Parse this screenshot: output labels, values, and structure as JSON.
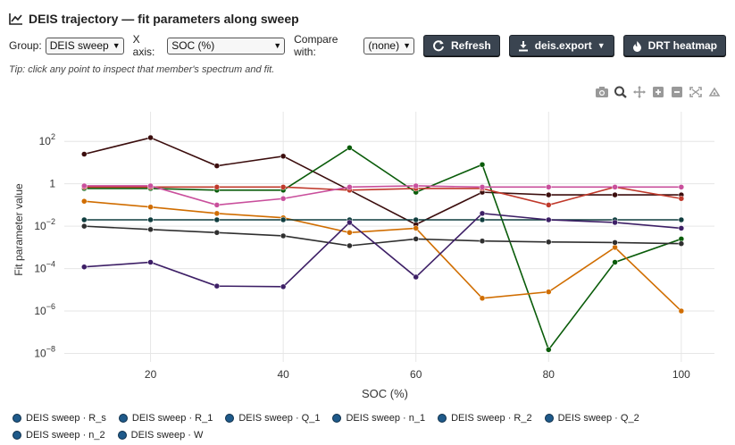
{
  "header": {
    "title": "DEIS trajectory — fit parameters along sweep",
    "icon": "line-chart-icon"
  },
  "controls": {
    "group_label": "Group:",
    "group_value": "DEIS sweep",
    "xaxis_label": "X axis:",
    "xaxis_value": "SOC (%)",
    "compare_label": "Compare with:",
    "compare_value": "(none)",
    "refresh_label": "Refresh",
    "export_label": "deis.export",
    "drt_label": "DRT heatmap"
  },
  "tip": "Tip: click any point to inspect that member's spectrum and fit.",
  "modebar": [
    "camera-icon",
    "zoom-icon",
    "pan-icon",
    "zoom-in-icon",
    "zoom-out-icon",
    "autoscale-icon",
    "reset-axes-icon"
  ],
  "colors": {
    "button_bg": "#3a4450",
    "legend_dot": "#1f5a8a"
  },
  "chart_data": {
    "type": "line",
    "xlabel": "SOC (%)",
    "ylabel": "Fit parameter value",
    "yscale": "log",
    "xlim": [
      7,
      105
    ],
    "ylim_exp": [
      -8.4,
      3.4
    ],
    "xticks": [
      20,
      40,
      60,
      80,
      100
    ],
    "yticks": [
      {
        "v": 100,
        "base": "10",
        "exp": "2"
      },
      {
        "v": 1,
        "base": "1",
        "exp": ""
      },
      {
        "v": 0.01,
        "base": "10",
        "exp": "−2"
      },
      {
        "v": 0.0001,
        "base": "10",
        "exp": "−4"
      },
      {
        "v": 1e-06,
        "base": "10",
        "exp": "−6"
      },
      {
        "v": 1e-08,
        "base": "10",
        "exp": "−8"
      }
    ],
    "grid": true,
    "x": [
      10,
      20,
      30,
      40,
      50,
      60,
      70,
      80,
      90,
      100
    ],
    "series": [
      {
        "color": "#3b0d0d",
        "values": [
          25,
          150,
          7,
          20,
          0.5,
          0.012,
          0.4,
          0.3,
          0.3,
          0.3
        ]
      },
      {
        "color": "#0a5c0a",
        "values": [
          0.6,
          0.6,
          0.5,
          0.5,
          50,
          0.4,
          8,
          1.5e-08,
          0.0002,
          0.0025
        ]
      },
      {
        "color": "#c0392b",
        "values": [
          0.7,
          0.7,
          0.7,
          0.7,
          0.5,
          0.6,
          0.6,
          0.1,
          0.7,
          0.2
        ]
      },
      {
        "color": "#c94f9c",
        "values": [
          0.8,
          0.8,
          0.1,
          0.2,
          0.7,
          0.8,
          0.7,
          0.7,
          0.7,
          0.7
        ]
      },
      {
        "color": "#d06d00",
        "values": [
          0.15,
          0.08,
          0.04,
          0.025,
          0.005,
          0.008,
          4e-06,
          8e-06,
          0.001,
          1e-06
        ]
      },
      {
        "color": "#0f3d3e",
        "values": [
          0.02,
          0.02,
          0.02,
          0.02,
          0.02,
          0.02,
          0.02,
          0.02,
          0.02,
          0.02
        ]
      },
      {
        "color": "#2f2f2f",
        "values": [
          0.01,
          0.007,
          0.005,
          0.0035,
          0.0012,
          0.0025,
          0.002,
          0.0018,
          0.0017,
          0.0015
        ]
      },
      {
        "color": "#3d1f66",
        "values": [
          0.00012,
          0.0002,
          1.5e-05,
          1.4e-05,
          0.015,
          4e-05,
          0.04,
          0.02,
          0.015,
          0.008
        ]
      }
    ]
  },
  "legend": {
    "rows": [
      [
        "DEIS sweep · R_s",
        "DEIS sweep · R_1",
        "DEIS sweep · Q_1",
        "DEIS sweep · n_1",
        "DEIS sweep · R_2",
        "DEIS sweep · Q_2"
      ],
      [
        "DEIS sweep · n_2",
        "DEIS sweep · W"
      ]
    ]
  }
}
